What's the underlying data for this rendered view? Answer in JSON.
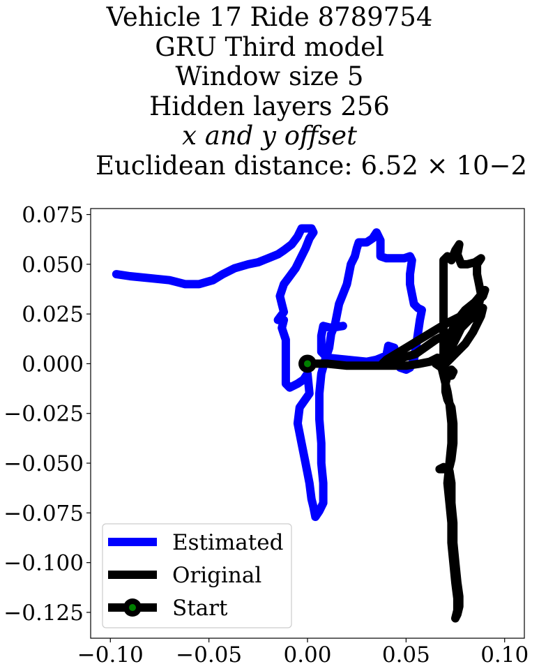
{
  "title_lines": [
    "Vehicle 17 Ride 8789754",
    "GRU Third model",
    "Window size 5",
    "Hidden layers 256",
    "x and y offset",
    "Euclidean distance: 6.52 × 10−2"
  ],
  "chart_data": {
    "type": "line",
    "title": "Vehicle 17 Ride 8789754 / GRU Third model / Window size 5 / Hidden layers 256 / x and y offset / Euclidean distance: 6.52 × 10^-2",
    "xlabel": "",
    "ylabel": "",
    "xlim": [
      -0.11,
      0.11
    ],
    "ylim": [
      -0.138,
      0.078
    ],
    "xticks": [
      -0.1,
      -0.05,
      0.0,
      0.05,
      0.1
    ],
    "xtick_labels": [
      "−0.10",
      "−0.05",
      "0.00",
      "0.05",
      "0.10"
    ],
    "yticks": [
      0.075,
      0.05,
      0.025,
      0.0,
      -0.025,
      -0.05,
      -0.075,
      -0.1,
      -0.125
    ],
    "ytick_labels": [
      "0.075",
      "0.050",
      "0.025",
      "0.000",
      "−0.025",
      "−0.050",
      "−0.075",
      "−0.100",
      "−0.125"
    ],
    "grid": false,
    "legend_position": "lower-left",
    "series": [
      {
        "name": "Estimated",
        "color": "#0000ff",
        "points": [
          [
            -0.097,
            0.045
          ],
          [
            -0.09,
            0.044
          ],
          [
            -0.08,
            0.043
          ],
          [
            -0.07,
            0.042
          ],
          [
            -0.062,
            0.04
          ],
          [
            -0.055,
            0.04
          ],
          [
            -0.048,
            0.042
          ],
          [
            -0.043,
            0.045
          ],
          [
            -0.037,
            0.048
          ],
          [
            -0.03,
            0.05
          ],
          [
            -0.025,
            0.051
          ],
          [
            -0.02,
            0.053
          ],
          [
            -0.015,
            0.055
          ],
          [
            -0.012,
            0.057
          ],
          [
            -0.008,
            0.06
          ],
          [
            -0.005,
            0.064
          ],
          [
            -0.003,
            0.068
          ],
          [
            0.002,
            0.068
          ],
          [
            0.003,
            0.066
          ],
          [
            0.001,
            0.063
          ],
          [
            -0.001,
            0.058
          ],
          [
            -0.004,
            0.052
          ],
          [
            -0.006,
            0.048
          ],
          [
            -0.009,
            0.044
          ],
          [
            -0.012,
            0.04
          ],
          [
            -0.014,
            0.034
          ],
          [
            -0.013,
            0.03
          ],
          [
            -0.012,
            0.026
          ],
          [
            -0.015,
            0.022
          ],
          [
            -0.012,
            0.022
          ],
          [
            -0.013,
            0.018
          ],
          [
            -0.011,
            0.012
          ],
          [
            -0.011,
            0.004
          ],
          [
            -0.011,
            -0.004
          ],
          [
            -0.011,
            -0.01
          ],
          [
            -0.009,
            -0.012
          ],
          [
            -0.005,
            -0.01
          ],
          [
            -0.002,
            -0.008
          ],
          [
            0.0,
            -0.005
          ],
          [
            0.001,
            -0.015
          ],
          [
            -0.004,
            -0.022
          ],
          [
            -0.005,
            -0.03
          ],
          [
            -0.003,
            -0.04
          ],
          [
            -0.001,
            -0.05
          ],
          [
            0.001,
            -0.06
          ],
          [
            0.002,
            -0.068
          ],
          [
            0.003,
            -0.072
          ],
          [
            0.004,
            -0.077
          ],
          [
            0.006,
            -0.074
          ],
          [
            0.008,
            -0.07
          ],
          [
            0.008,
            -0.06
          ],
          [
            0.007,
            -0.05
          ],
          [
            0.007,
            -0.04
          ],
          [
            0.006,
            -0.028
          ],
          [
            0.006,
            -0.015
          ],
          [
            0.007,
            -0.005
          ],
          [
            0.009,
            0.002
          ],
          [
            0.011,
            0.008
          ],
          [
            0.012,
            0.015
          ],
          [
            0.014,
            0.02
          ],
          [
            0.015,
            0.025
          ],
          [
            0.016,
            0.03
          ],
          [
            0.018,
            0.035
          ],
          [
            0.02,
            0.04
          ],
          [
            0.021,
            0.045
          ],
          [
            0.022,
            0.05
          ],
          [
            0.024,
            0.054
          ],
          [
            0.025,
            0.058
          ],
          [
            0.026,
            0.061
          ],
          [
            0.03,
            0.061
          ],
          [
            0.033,
            0.063
          ],
          [
            0.035,
            0.066
          ],
          [
            0.037,
            0.062
          ],
          [
            0.037,
            0.058
          ],
          [
            0.037,
            0.054
          ],
          [
            0.04,
            0.053
          ],
          [
            0.045,
            0.053
          ],
          [
            0.049,
            0.053
          ],
          [
            0.052,
            0.054
          ],
          [
            0.053,
            0.052
          ],
          [
            0.052,
            0.045
          ],
          [
            0.052,
            0.04
          ],
          [
            0.053,
            0.035
          ],
          [
            0.054,
            0.03
          ],
          [
            0.056,
            0.028
          ],
          [
            0.058,
            0.027
          ],
          [
            0.057,
            0.022
          ],
          [
            0.056,
            0.015
          ],
          [
            0.055,
            0.008
          ],
          [
            0.054,
            0.002
          ],
          [
            0.052,
            -0.002
          ],
          [
            0.05,
            -0.003
          ],
          [
            0.047,
            -0.002
          ],
          [
            0.045,
            0.002
          ],
          [
            0.044,
            0.008
          ],
          [
            0.041,
            0.009
          ],
          [
            0.04,
            0.004
          ],
          [
            0.035,
            0.002
          ],
          [
            0.03,
            0.001
          ],
          [
            0.02,
            0.002
          ],
          [
            0.01,
            0.003
          ],
          [
            0.007,
            0.006
          ],
          [
            0.007,
            0.014
          ],
          [
            0.008,
            0.019
          ],
          [
            0.012,
            0.018
          ],
          [
            0.018,
            0.019
          ]
        ]
      },
      {
        "name": "Original",
        "color": "#000000",
        "points": [
          [
            0.0,
            0.0
          ],
          [
            0.01,
            0.0
          ],
          [
            0.02,
            -0.001
          ],
          [
            0.03,
            -0.001
          ],
          [
            0.04,
            -0.001
          ],
          [
            0.05,
            -0.001
          ],
          [
            0.057,
            0.0
          ],
          [
            0.062,
            0.001
          ],
          [
            0.066,
            0.003
          ],
          [
            0.068,
            0.001
          ],
          [
            0.07,
            -0.003
          ],
          [
            0.071,
            -0.005
          ],
          [
            0.073,
            -0.006
          ],
          [
            0.074,
            -0.004
          ],
          [
            0.073,
            -0.003
          ],
          [
            0.071,
            -0.006
          ],
          [
            0.07,
            -0.01
          ],
          [
            0.07,
            -0.014
          ],
          [
            0.071,
            -0.018
          ],
          [
            0.073,
            -0.022
          ],
          [
            0.074,
            -0.03
          ],
          [
            0.074,
            -0.04
          ],
          [
            0.073,
            -0.048
          ],
          [
            0.072,
            -0.052
          ],
          [
            0.069,
            -0.053
          ],
          [
            0.067,
            -0.053
          ],
          [
            0.069,
            -0.052
          ],
          [
            0.072,
            -0.054
          ],
          [
            0.073,
            -0.06
          ],
          [
            0.073,
            -0.07
          ],
          [
            0.074,
            -0.08
          ],
          [
            0.074,
            -0.09
          ],
          [
            0.075,
            -0.1
          ],
          [
            0.076,
            -0.11
          ],
          [
            0.077,
            -0.117
          ],
          [
            0.077,
            -0.122
          ],
          [
            0.076,
            -0.126
          ],
          [
            0.075,
            -0.128
          ],
          [
            0.076,
            -0.124
          ],
          [
            0.076,
            -0.118
          ],
          [
            0.075,
            -0.11
          ],
          [
            0.074,
            -0.1
          ],
          [
            0.073,
            -0.09
          ],
          [
            0.073,
            -0.08
          ],
          [
            0.072,
            -0.07
          ],
          [
            0.071,
            -0.06
          ],
          [
            0.072,
            -0.05
          ],
          [
            0.073,
            -0.04
          ],
          [
            0.073,
            -0.03
          ],
          [
            0.072,
            -0.02
          ],
          [
            0.071,
            -0.014
          ],
          [
            0.07,
            -0.01
          ],
          [
            0.069,
            -0.006
          ],
          [
            0.068,
            -0.002
          ],
          [
            0.068,
            0.0
          ],
          [
            0.069,
            0.005
          ],
          [
            0.071,
            0.01
          ],
          [
            0.073,
            0.016
          ],
          [
            0.076,
            0.022
          ],
          [
            0.08,
            0.027
          ],
          [
            0.085,
            0.031
          ],
          [
            0.09,
            0.037
          ],
          [
            0.089,
            0.034
          ],
          [
            0.085,
            0.03
          ],
          [
            0.078,
            0.024
          ],
          [
            0.07,
            0.02
          ],
          [
            0.06,
            0.014
          ],
          [
            0.05,
            0.008
          ],
          [
            0.04,
            0.002
          ],
          [
            0.038,
            0.0
          ],
          [
            0.045,
            0.002
          ],
          [
            0.055,
            0.005
          ],
          [
            0.065,
            0.012
          ],
          [
            0.073,
            0.016
          ],
          [
            0.079,
            0.02
          ],
          [
            0.084,
            0.026
          ],
          [
            0.087,
            0.03
          ],
          [
            0.088,
            0.035
          ],
          [
            0.087,
            0.04
          ],
          [
            0.086,
            0.045
          ],
          [
            0.086,
            0.05
          ],
          [
            0.088,
            0.053
          ],
          [
            0.085,
            0.051
          ],
          [
            0.081,
            0.05
          ],
          [
            0.078,
            0.05
          ],
          [
            0.076,
            0.055
          ],
          [
            0.077,
            0.06
          ],
          [
            0.075,
            0.057
          ],
          [
            0.073,
            0.052
          ],
          [
            0.071,
            0.054
          ],
          [
            0.069,
            0.052
          ],
          [
            0.069,
            0.048
          ],
          [
            0.069,
            0.04
          ],
          [
            0.069,
            0.03
          ],
          [
            0.069,
            0.02
          ],
          [
            0.069,
            0.012
          ],
          [
            0.069,
            0.005
          ],
          [
            0.07,
            0.002
          ],
          [
            0.074,
            0.01
          ],
          [
            0.078,
            0.018
          ],
          [
            0.082,
            0.022
          ],
          [
            0.087,
            0.026
          ],
          [
            0.089,
            0.028
          ],
          [
            0.088,
            0.024
          ],
          [
            0.084,
            0.016
          ],
          [
            0.08,
            0.01
          ],
          [
            0.076,
            0.006
          ],
          [
            0.072,
            0.002
          ],
          [
            0.068,
            -0.002
          ],
          [
            0.065,
            0.0
          ]
        ]
      },
      {
        "name": "Start",
        "color": "#000000",
        "marker_fill": "#008000",
        "points": [
          [
            0.0,
            0.0
          ]
        ]
      }
    ]
  }
}
